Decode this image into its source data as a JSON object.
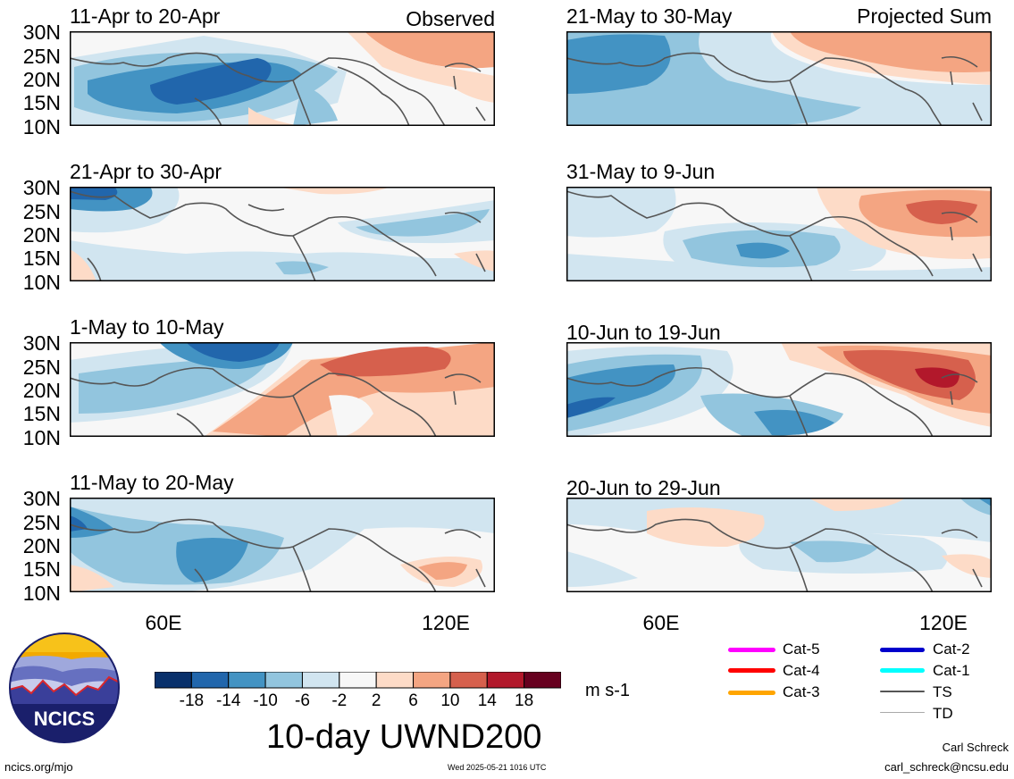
{
  "panels": [
    {
      "title": "11-Apr to 20-Apr",
      "corner": "Observed"
    },
    {
      "title": "21-Apr to 30-Apr",
      "corner": ""
    },
    {
      "title": "1-May to 10-May",
      "corner": ""
    },
    {
      "title": "11-May to 20-May",
      "corner": ""
    },
    {
      "title": "21-May to 30-May",
      "corner": "Projected Sum"
    },
    {
      "title": "31-May to 9-Jun",
      "corner": ""
    },
    {
      "title": "10-Jun to 19-Jun",
      "corner": ""
    },
    {
      "title": "20-Jun to 29-Jun",
      "corner": ""
    }
  ],
  "lat_labels": [
    "30N",
    "25N",
    "20N",
    "15N",
    "10N"
  ],
  "lon_labels": [
    "60E",
    "120E"
  ],
  "colorbar": {
    "colors": [
      "#08306b",
      "#2166ac",
      "#4393c3",
      "#92c5de",
      "#d1e5f0",
      "#f7f7f7",
      "#fddbc7",
      "#f4a582",
      "#d6604d",
      "#b2182b",
      "#67001f"
    ],
    "labels": [
      "-18",
      "-14",
      "-10",
      "-6",
      "-2",
      "2",
      "6",
      "10",
      "14",
      "18"
    ],
    "unit": "m s-1"
  },
  "title": "10-day UWND200",
  "logo_text": "NCICS",
  "legend": [
    {
      "label": "Cat-5",
      "color": "#ff00ff"
    },
    {
      "label": "Cat-4",
      "color": "#ff0000"
    },
    {
      "label": "Cat-3",
      "color": "#ffa500"
    },
    {
      "label": "Cat-2",
      "color": "#0000cc"
    },
    {
      "label": "Cat-1",
      "color": "#00ffff"
    },
    {
      "label": "TS",
      "color": "#555555"
    },
    {
      "label": "TD",
      "color": "#aaaaaa"
    }
  ],
  "footer": {
    "url": "ncics.org/mjo",
    "timestamp": "Wed 2025-05-21 1016 UTC",
    "author": "Carl Schreck",
    "email": "carl_schreck@ncsu.edu"
  }
}
